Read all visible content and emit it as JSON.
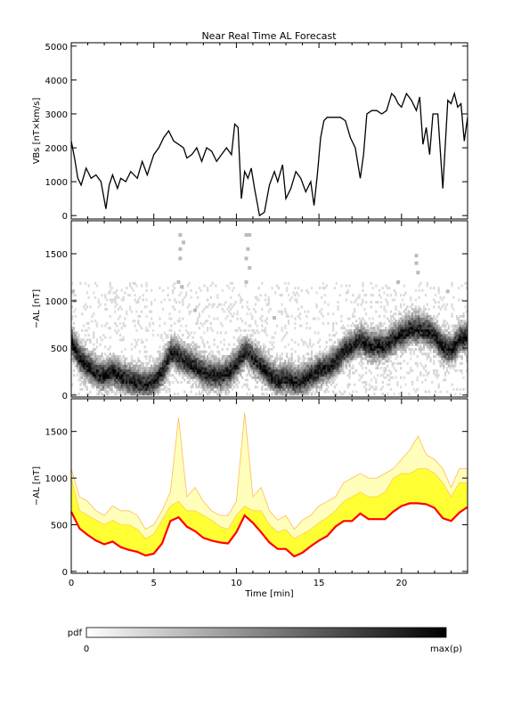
{
  "title": "Near Real Time AL Forecast",
  "colors": {
    "line": "#000000",
    "band_fill": "#ffff33",
    "band_edge": "#ffbb55",
    "pale_fill": "#ffffbb",
    "forecast_line": "#ff0000"
  },
  "colorbar": {
    "label": "pdf",
    "min_label": "0",
    "max_label": "max(p)"
  },
  "chart_data": [
    {
      "type": "line",
      "panel": "top",
      "ylabel": "VBs [nT×km/s]",
      "xlabel": "",
      "xlim": [
        0,
        24
      ],
      "ylim": [
        -100,
        5100
      ],
      "yticks": [
        0,
        1000,
        2000,
        3000,
        4000,
        5000
      ],
      "xticks": [
        0,
        5,
        10,
        15,
        20
      ],
      "series": [
        {
          "x": [
            0,
            0.2,
            0.4,
            0.6,
            0.9,
            1.2,
            1.5,
            1.8,
            2.1,
            2.3,
            2.5,
            2.8,
            3.0,
            3.3,
            3.6,
            4.0,
            4.3,
            4.6,
            4.8,
            5.0,
            5.3,
            5.6,
            5.9,
            6.2,
            6.5,
            6.8,
            7.0,
            7.3,
            7.6,
            7.9,
            8.2,
            8.5,
            8.8,
            9.1,
            9.4,
            9.7,
            9.9,
            10.1,
            10.3,
            10.5,
            10.7,
            10.9,
            11.1,
            11.4,
            11.7,
            12.0,
            12.3,
            12.5,
            12.8,
            13.0,
            13.3,
            13.6,
            13.9,
            14.2,
            14.5,
            14.7,
            14.9,
            15.1,
            15.3,
            15.5,
            15.7,
            16.0,
            16.3,
            16.6,
            16.9,
            17.2,
            17.5,
            17.7,
            17.9,
            18.2,
            18.5,
            18.8,
            19.1,
            19.4,
            19.6,
            19.8,
            20.0,
            20.3,
            20.6,
            20.9,
            21.1,
            21.3,
            21.5,
            21.7,
            21.9,
            22.2,
            22.5,
            22.8,
            23.0,
            23.2,
            23.4,
            23.6,
            23.8,
            24.0
          ],
          "y": [
            2200,
            1700,
            1100,
            900,
            1400,
            1100,
            1200,
            1000,
            200,
            900,
            1200,
            800,
            1100,
            1000,
            1300,
            1100,
            1600,
            1200,
            1500,
            1800,
            2000,
            2300,
            2500,
            2200,
            2100,
            2000,
            1700,
            1800,
            2000,
            1600,
            2000,
            1900,
            1600,
            1800,
            2000,
            1800,
            2700,
            2600,
            500,
            1300,
            1100,
            1400,
            800,
            0,
            100,
            900,
            1300,
            1000,
            1500,
            500,
            800,
            1300,
            1100,
            700,
            1000,
            300,
            1200,
            2300,
            2800,
            2900,
            2900,
            2900,
            2900,
            2800,
            2300,
            2000,
            1100,
            1800,
            3000,
            3100,
            3100,
            3000,
            3100,
            3600,
            3500,
            3300,
            3200,
            3600,
            3400,
            3100,
            3500,
            2100,
            2600,
            1800,
            3000,
            3000,
            800,
            3400,
            3300,
            3600,
            3200,
            3300,
            2200,
            2900
          ]
        }
      ]
    },
    {
      "type": "heatmap",
      "panel": "middle",
      "ylabel": "−AL [nT]",
      "xlabel": "",
      "xlim": [
        0,
        24
      ],
      "ylim": [
        -20,
        1850
      ],
      "yticks": [
        0,
        500,
        1000,
        1500
      ],
      "xticks": [
        0,
        5,
        10,
        15,
        20
      ],
      "ridge": {
        "x": [
          0,
          0.5,
          1,
          1.5,
          2,
          2.5,
          3,
          3.5,
          4,
          4.5,
          5,
          5.5,
          6,
          6.5,
          7,
          7.5,
          8,
          8.5,
          9,
          9.5,
          10,
          10.5,
          11,
          11.5,
          12,
          12.5,
          13,
          13.5,
          14,
          14.5,
          15,
          15.5,
          16,
          16.5,
          17,
          17.5,
          18,
          18.5,
          19,
          19.5,
          20,
          20.5,
          21,
          21.5,
          22,
          22.5,
          23,
          23.5,
          24
        ],
        "y": [
          550,
          380,
          300,
          230,
          200,
          250,
          190,
          150,
          130,
          110,
          150,
          250,
          450,
          400,
          340,
          300,
          230,
          210,
          200,
          240,
          330,
          470,
          380,
          300,
          200,
          150,
          180,
          130,
          160,
          210,
          260,
          300,
          360,
          470,
          520,
          580,
          520,
          520,
          520,
          600,
          650,
          700,
          700,
          680,
          620,
          500,
          480,
          600,
          620
        ]
      },
      "outliers": [
        {
          "x": 6.6,
          "y": 1700
        },
        {
          "x": 6.6,
          "y": 1550
        },
        {
          "x": 6.6,
          "y": 1450
        },
        {
          "x": 6.8,
          "y": 1620
        },
        {
          "x": 6.5,
          "y": 1200
        },
        {
          "x": 6.7,
          "y": 1150
        },
        {
          "x": 10.6,
          "y": 1700
        },
        {
          "x": 10.8,
          "y": 1700
        },
        {
          "x": 10.7,
          "y": 1550
        },
        {
          "x": 10.6,
          "y": 1450
        },
        {
          "x": 10.8,
          "y": 1350
        },
        {
          "x": 10.6,
          "y": 1200
        },
        {
          "x": 20.9,
          "y": 1480
        },
        {
          "x": 20.9,
          "y": 1400
        },
        {
          "x": 21.0,
          "y": 1300
        },
        {
          "x": 0.2,
          "y": 1000
        },
        {
          "x": 0.1,
          "y": 1100
        },
        {
          "x": 12.3,
          "y": 820
        },
        {
          "x": 7.5,
          "y": 900
        },
        {
          "x": 19.8,
          "y": 1200
        },
        {
          "x": 22.8,
          "y": 1100
        }
      ]
    },
    {
      "type": "area",
      "panel": "bottom",
      "ylabel": "−AL [nT]",
      "xlabel": "Time [min]",
      "xlim": [
        0,
        24
      ],
      "ylim": [
        -20,
        1850
      ],
      "yticks": [
        0,
        500,
        1000,
        1500
      ],
      "xticks": [
        0,
        5,
        10,
        15,
        20
      ],
      "x": [
        0,
        0.5,
        1,
        1.5,
        2,
        2.5,
        3,
        3.5,
        4,
        4.5,
        5,
        5.5,
        6,
        6.5,
        7,
        7.5,
        8,
        8.5,
        9,
        9.5,
        10,
        10.5,
        11,
        11.5,
        12,
        12.5,
        13,
        13.5,
        14,
        14.5,
        15,
        15.5,
        16,
        16.5,
        17,
        17.5,
        18,
        18.5,
        19,
        19.5,
        20,
        20.5,
        21,
        21.5,
        22,
        22.5,
        23,
        23.5,
        24
      ],
      "series": [
        {
          "name": "",
          "role": "forecast",
          "values": [
            640,
            460,
            390,
            330,
            290,
            320,
            260,
            230,
            210,
            170,
            190,
            300,
            540,
            580,
            480,
            430,
            360,
            330,
            310,
            300,
            420,
            600,
            520,
            420,
            310,
            240,
            240,
            160,
            200,
            270,
            330,
            380,
            480,
            540,
            540,
            620,
            560,
            560,
            560,
            640,
            700,
            730,
            730,
            720,
            680,
            570,
            540,
            630,
            690
          ]
        },
        {
          "name": "",
          "role": "band_upper",
          "values": [
            1100,
            800,
            750,
            650,
            600,
            700,
            650,
            650,
            600,
            450,
            500,
            650,
            850,
            1650,
            800,
            900,
            750,
            650,
            600,
            600,
            750,
            1700,
            800,
            900,
            650,
            550,
            600,
            450,
            550,
            600,
            700,
            750,
            800,
            950,
            1000,
            1050,
            1000,
            1000,
            1050,
            1100,
            1200,
            1300,
            1450,
            1250,
            1200,
            1100,
            900,
            1100,
            1100
          ]
        },
        {
          "name": "",
          "role": "band_core_upper",
          "values": [
            1000,
            650,
            600,
            550,
            500,
            550,
            500,
            500,
            450,
            350,
            400,
            550,
            700,
            750,
            650,
            650,
            600,
            550,
            480,
            450,
            600,
            700,
            650,
            650,
            500,
            420,
            450,
            350,
            400,
            450,
            520,
            580,
            650,
            750,
            800,
            850,
            800,
            800,
            850,
            1000,
            1050,
            1050,
            1100,
            1100,
            1050,
            950,
            800,
            950,
            950
          ]
        }
      ]
    }
  ]
}
